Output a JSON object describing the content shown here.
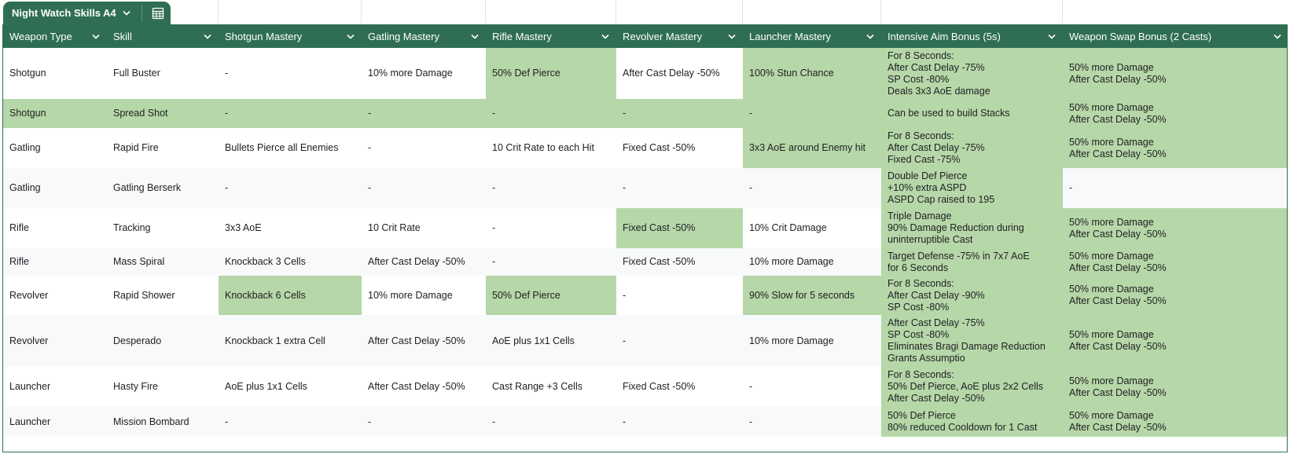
{
  "sheet_tab": {
    "name": "Night Watch Skills A4",
    "chevron_icon": "chevron-down-icon",
    "table_icon": "table-calculator-icon"
  },
  "colors": {
    "header_bg": "#2f6e53",
    "highlight": "#b6d7a8",
    "stripe": "#f8f9fa"
  },
  "columns": [
    "Weapon Type",
    "Skill",
    "Shotgun Mastery",
    "Gatling Mastery",
    "Rifle Mastery",
    "Revolver Mastery",
    "Launcher Mastery",
    "Intensive Aim Bonus (5s)",
    "Weapon Swap Bonus (2 Casts)"
  ],
  "rows": [
    {
      "cells": [
        {
          "lines": [
            "Shotgun"
          ]
        },
        {
          "lines": [
            "Full Buster"
          ]
        },
        {
          "lines": [
            "-"
          ]
        },
        {
          "lines": [
            "10% more Damage"
          ]
        },
        {
          "lines": [
            "50% Def Pierce"
          ],
          "hl": true
        },
        {
          "lines": [
            "After Cast Delay -50%"
          ]
        },
        {
          "lines": [
            "100% Stun Chance"
          ],
          "hl": true
        },
        {
          "lines": [
            "For 8 Seconds:",
            "After Cast Delay -75%",
            "SP Cost -80%",
            "Deals 3x3 AoE damage"
          ],
          "hl": true
        },
        {
          "lines": [
            "50% more Damage",
            "After Cast Delay -50%"
          ],
          "hl": true
        }
      ]
    },
    {
      "row_hl": true,
      "cells": [
        {
          "lines": [
            "Shotgun"
          ]
        },
        {
          "lines": [
            "Spread Shot"
          ]
        },
        {
          "lines": [
            "-"
          ]
        },
        {
          "lines": [
            "-"
          ]
        },
        {
          "lines": [
            "-"
          ]
        },
        {
          "lines": [
            "-"
          ]
        },
        {
          "lines": [
            "-"
          ]
        },
        {
          "lines": [
            "Can be used to build Stacks"
          ]
        },
        {
          "lines": [
            "50% more Damage",
            "After Cast Delay -50%"
          ]
        }
      ]
    },
    {
      "cells": [
        {
          "lines": [
            "Gatling"
          ]
        },
        {
          "lines": [
            "Rapid Fire"
          ]
        },
        {
          "lines": [
            "Bullets Pierce all Enemies"
          ]
        },
        {
          "lines": [
            "-"
          ]
        },
        {
          "lines": [
            "10 Crit Rate to each Hit"
          ]
        },
        {
          "lines": [
            "Fixed Cast -50%"
          ]
        },
        {
          "lines": [
            "3x3 AoE around Enemy hit"
          ],
          "hl": true
        },
        {
          "lines": [
            "For 8 Seconds:",
            "After Cast Delay -75%",
            "Fixed Cast -75%"
          ],
          "hl": true
        },
        {
          "lines": [
            "50% more Damage",
            "After Cast Delay -50%"
          ],
          "hl": true
        }
      ]
    },
    {
      "cells": [
        {
          "lines": [
            "Gatling"
          ]
        },
        {
          "lines": [
            "Gatling Berserk"
          ]
        },
        {
          "lines": [
            "-"
          ]
        },
        {
          "lines": [
            "-"
          ]
        },
        {
          "lines": [
            "-"
          ]
        },
        {
          "lines": [
            "-"
          ]
        },
        {
          "lines": [
            "-"
          ]
        },
        {
          "lines": [
            "Double Def Pierce",
            "+10% extra ASPD",
            "ASPD Cap raised to 195"
          ],
          "hl": true
        },
        {
          "lines": [
            "-"
          ]
        }
      ]
    },
    {
      "cells": [
        {
          "lines": [
            "Rifle"
          ]
        },
        {
          "lines": [
            "Tracking"
          ]
        },
        {
          "lines": [
            "3x3 AoE"
          ]
        },
        {
          "lines": [
            "10 Crit Rate"
          ]
        },
        {
          "lines": [
            "-"
          ]
        },
        {
          "lines": [
            "Fixed Cast -50%"
          ],
          "hl": true
        },
        {
          "lines": [
            "10% Crit Damage"
          ]
        },
        {
          "lines": [
            "Triple Damage",
            "90% Damage Reduction during",
            "uninterruptible Cast"
          ],
          "hl": true
        },
        {
          "lines": [
            "50% more Damage",
            "After Cast Delay -50%"
          ],
          "hl": true
        }
      ]
    },
    {
      "cells": [
        {
          "lines": [
            "Rifle"
          ]
        },
        {
          "lines": [
            "Mass Spiral"
          ]
        },
        {
          "lines": [
            "Knockback 3 Cells"
          ]
        },
        {
          "lines": [
            "After Cast Delay -50%"
          ]
        },
        {
          "lines": [
            "-"
          ]
        },
        {
          "lines": [
            "Fixed Cast -50%"
          ]
        },
        {
          "lines": [
            "10% more Damage"
          ]
        },
        {
          "lines": [
            "Target Defense -75% in 7x7 AoE",
            "for 6 Seconds"
          ],
          "hl": true
        },
        {
          "lines": [
            "50% more Damage",
            "After Cast Delay -50%"
          ],
          "hl": true
        }
      ]
    },
    {
      "cells": [
        {
          "lines": [
            "Revolver"
          ]
        },
        {
          "lines": [
            "Rapid Shower"
          ]
        },
        {
          "lines": [
            "Knockback 6 Cells"
          ],
          "hl": true
        },
        {
          "lines": [
            "10% more Damage"
          ]
        },
        {
          "lines": [
            "50% Def Pierce"
          ],
          "hl": true
        },
        {
          "lines": [
            "-"
          ]
        },
        {
          "lines": [
            "90% Slow for 5 seconds"
          ],
          "hl": true
        },
        {
          "lines": [
            "For 8 Seconds:",
            "After Cast Delay -90%",
            "SP Cost -80%"
          ],
          "hl": true
        },
        {
          "lines": [
            "50% more Damage",
            "After Cast Delay -50%"
          ],
          "hl": true
        }
      ]
    },
    {
      "cells": [
        {
          "lines": [
            "Revolver"
          ]
        },
        {
          "lines": [
            "Desperado"
          ]
        },
        {
          "lines": [
            "Knockback 1 extra Cell"
          ]
        },
        {
          "lines": [
            "After Cast Delay -50%"
          ]
        },
        {
          "lines": [
            "AoE plus 1x1 Cells"
          ]
        },
        {
          "lines": [
            "-"
          ]
        },
        {
          "lines": [
            "10% more Damage"
          ]
        },
        {
          "lines": [
            "After Cast Delay -75%",
            "SP Cost -80%",
            "Eliminates Bragi Damage Reduction",
            "Grants Assumptio"
          ],
          "hl": true
        },
        {
          "lines": [
            "50% more Damage",
            "After Cast Delay -50%"
          ],
          "hl": true
        }
      ]
    },
    {
      "cells": [
        {
          "lines": [
            "Launcher"
          ]
        },
        {
          "lines": [
            "Hasty Fire"
          ]
        },
        {
          "lines": [
            "AoE plus 1x1 Cells"
          ]
        },
        {
          "lines": [
            "After Cast Delay -50%"
          ]
        },
        {
          "lines": [
            "Cast Range +3 Cells"
          ]
        },
        {
          "lines": [
            "Fixed Cast -50%"
          ]
        },
        {
          "lines": [
            "-"
          ]
        },
        {
          "lines": [
            "For 8 Seconds:",
            "50% Def Pierce, AoE plus 2x2 Cells",
            "After Cast Delay -50%"
          ],
          "hl": true
        },
        {
          "lines": [
            "50% more Damage",
            "After Cast Delay -50%"
          ],
          "hl": true
        }
      ]
    },
    {
      "cells": [
        {
          "lines": [
            "Launcher"
          ]
        },
        {
          "lines": [
            "Mission Bombard"
          ]
        },
        {
          "lines": [
            "-"
          ]
        },
        {
          "lines": [
            "-"
          ]
        },
        {
          "lines": [
            "-"
          ]
        },
        {
          "lines": [
            "-"
          ]
        },
        {
          "lines": [
            "-"
          ]
        },
        {
          "lines": [
            "50% Def Pierce",
            "80% reduced Cooldown for 1 Cast"
          ],
          "hl": true
        },
        {
          "lines": [
            "50% more Damage",
            "After Cast Delay -50%"
          ],
          "hl": true
        }
      ]
    }
  ]
}
